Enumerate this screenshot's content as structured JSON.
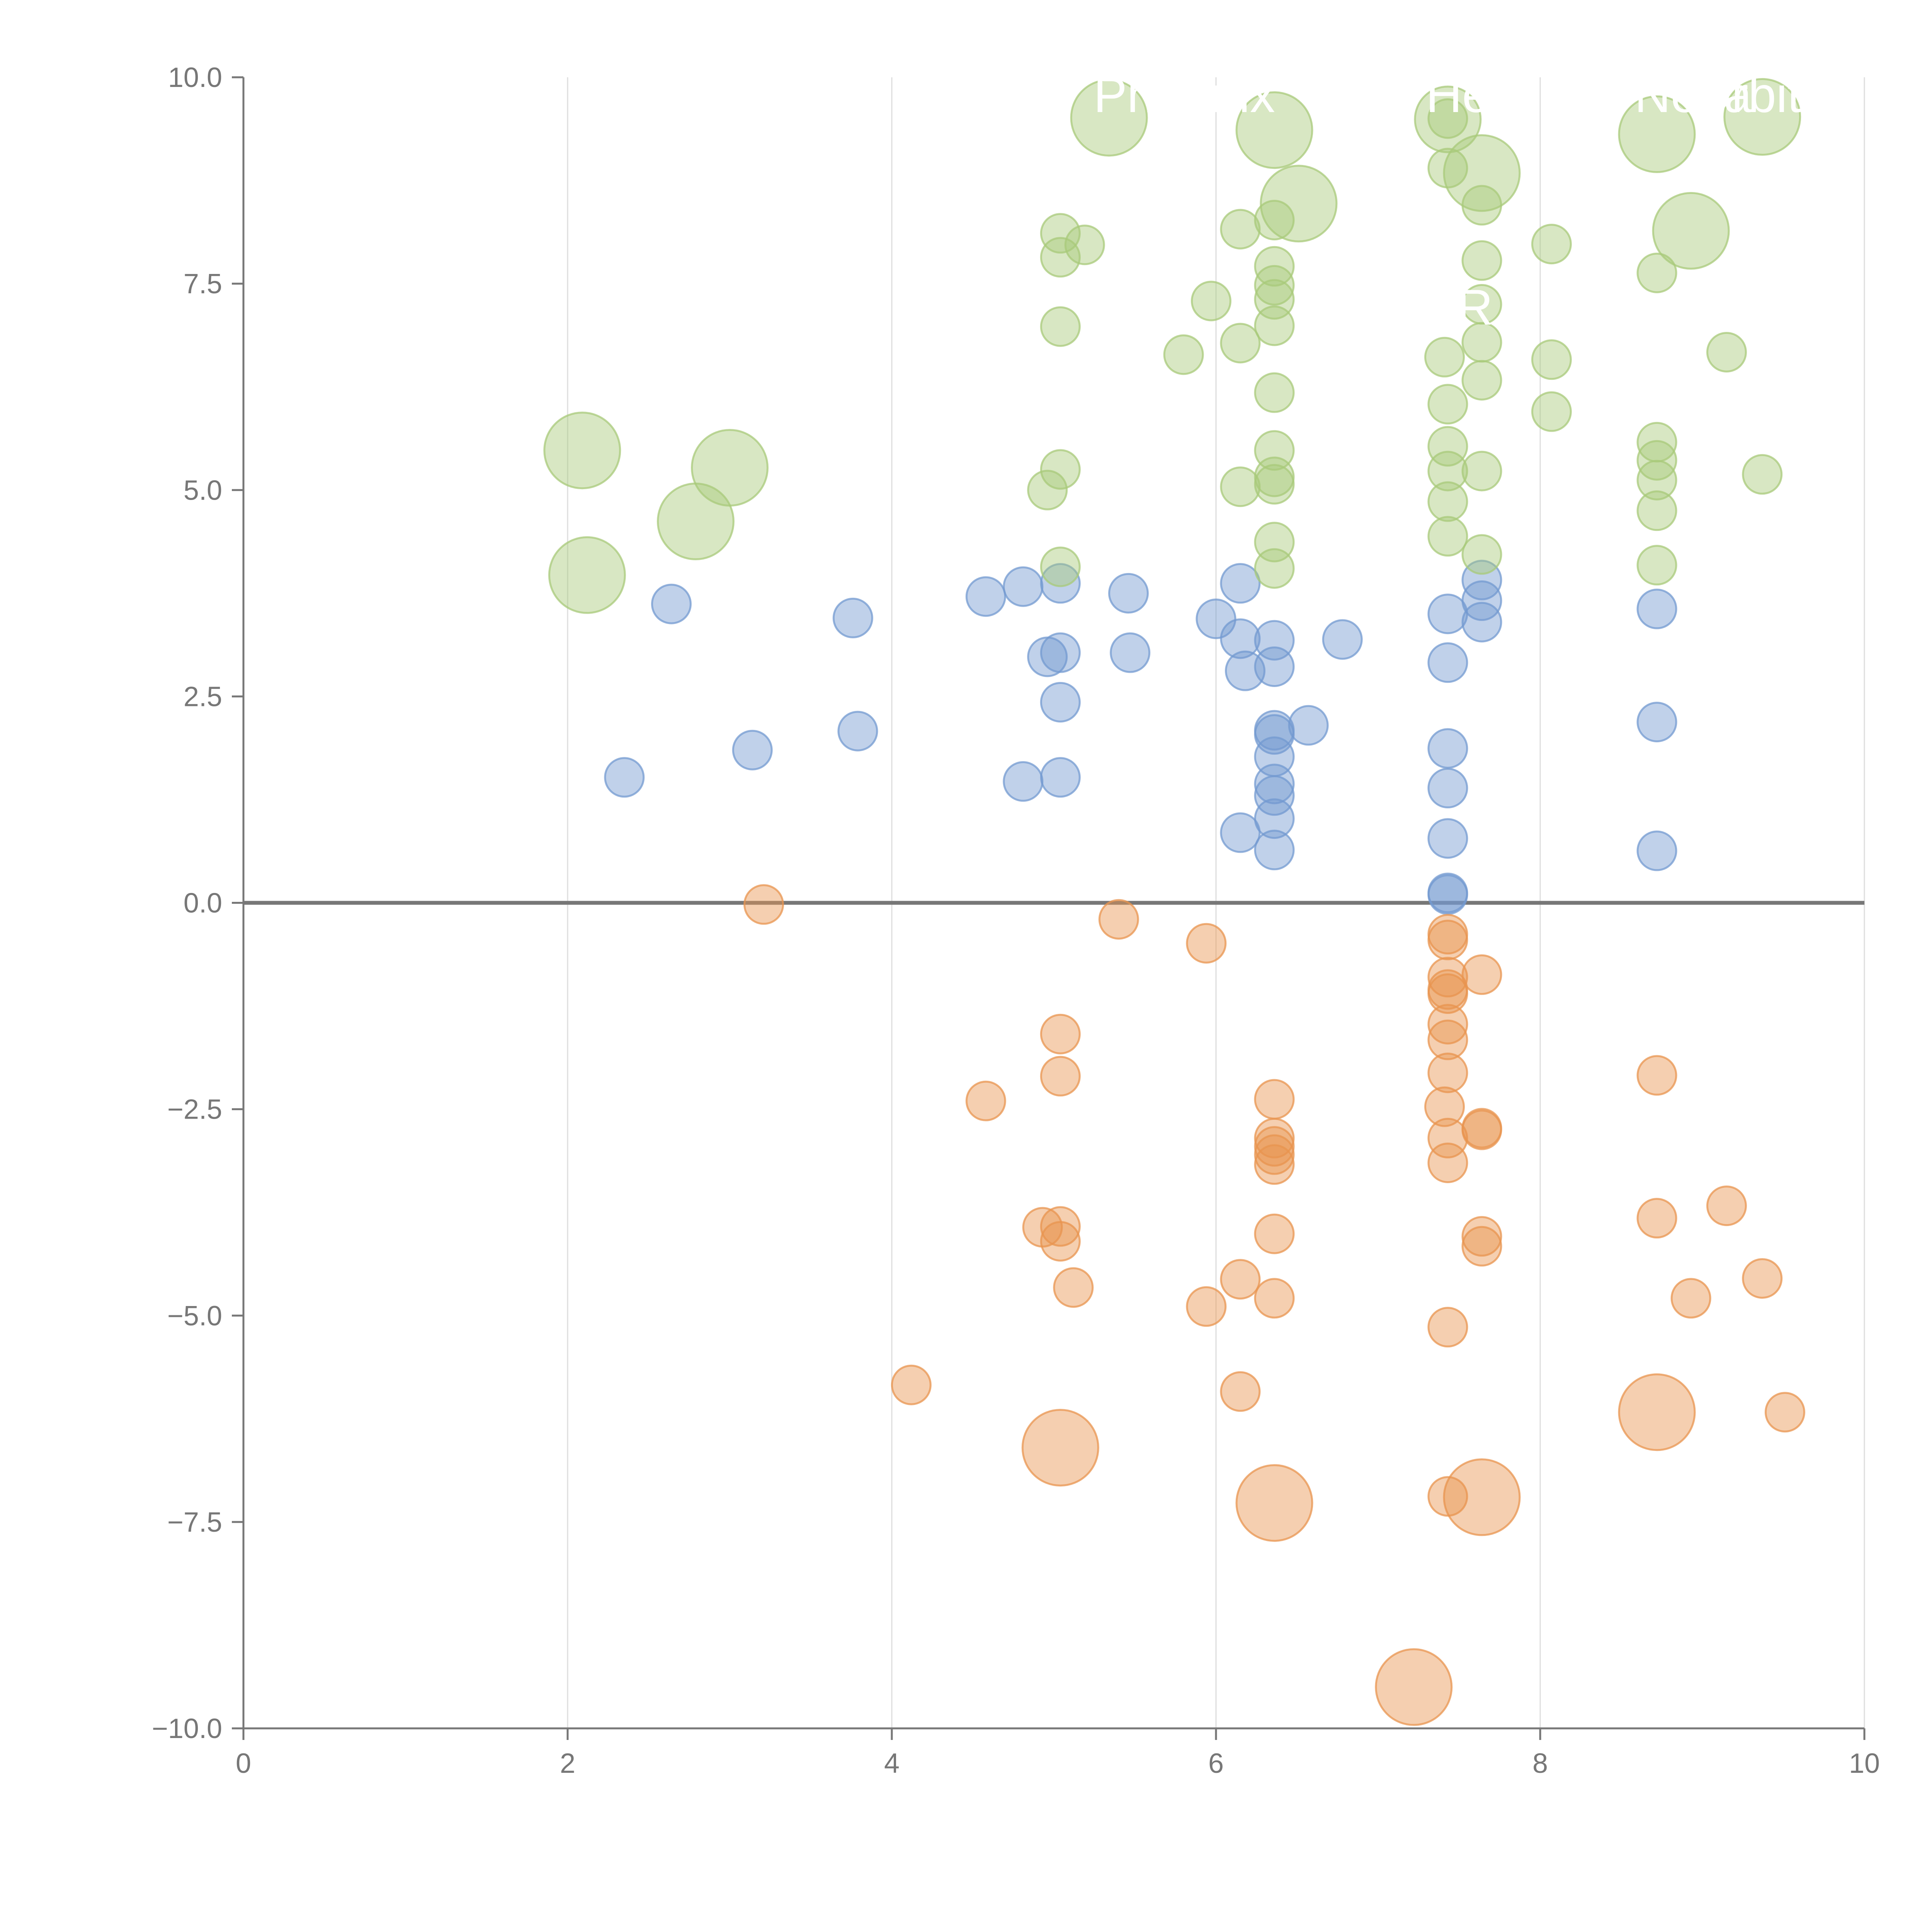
{
  "colors": {
    "blue": "#7399d0",
    "orange": "#e8944f",
    "green": "#a8c97a",
    "axis": "#777777",
    "grid": "#dddddd",
    "zero_line": "#777777",
    "label_text": "#ffffff"
  },
  "chart_data": {
    "type": "scatter",
    "title": "",
    "xlabel": "",
    "ylabel": "",
    "xlim": [
      0,
      10
    ],
    "ylim": [
      -10,
      10
    ],
    "x_ticks": [
      "0",
      "2",
      "4",
      "6",
      "8",
      "10"
    ],
    "x_tick_values": [
      0,
      2,
      4,
      6,
      8,
      10
    ],
    "y_ticks": [
      "10.0",
      "7.5",
      "5.0",
      "2.5",
      "0.0",
      "−2.5",
      "−5.0",
      "−7.5",
      "−10.0"
    ],
    "y_tick_values": [
      10,
      7.5,
      5,
      2.5,
      0,
      -2.5,
      -5,
      -7.5,
      -10
    ],
    "grid": {
      "vertical": true,
      "horizontal": false
    },
    "zero_line": true,
    "point_labels": [
      "Phoenix",
      "Helix",
      "Nova",
      "Orbit",
      "R"
    ],
    "series": [
      {
        "name": "blue",
        "color_key": "blue",
        "points": [
          [
            2.35,
            1.52,
            1
          ],
          [
            2.64,
            3.62,
            1
          ],
          [
            3.14,
            1.85,
            1
          ],
          [
            3.76,
            3.45,
            1
          ],
          [
            3.79,
            2.08,
            1
          ],
          [
            4.58,
            3.71,
            1
          ],
          [
            4.81,
            3.83,
            1
          ],
          [
            4.96,
            2.98,
            1
          ],
          [
            5.04,
            3.87,
            1
          ],
          [
            5.04,
            3.03,
            1
          ],
          [
            5.04,
            2.43,
            1
          ],
          [
            5.04,
            1.52,
            1
          ],
          [
            4.81,
            1.47,
            1
          ],
          [
            5.46,
            3.75,
            1
          ],
          [
            5.47,
            3.03,
            1
          ],
          [
            6.0,
            3.44,
            1
          ],
          [
            6.15,
            3.87,
            1
          ],
          [
            6.15,
            3.2,
            1
          ],
          [
            6.18,
            2.81,
            1
          ],
          [
            6.36,
            3.18,
            1
          ],
          [
            6.36,
            2.86,
            1
          ],
          [
            6.36,
            2.09,
            1
          ],
          [
            6.36,
            2.04,
            1
          ],
          [
            6.36,
            1.77,
            1
          ],
          [
            6.36,
            1.44,
            1
          ],
          [
            6.36,
            1.3,
            1
          ],
          [
            6.36,
            1.02,
            1
          ],
          [
            6.36,
            0.64,
            1
          ],
          [
            6.15,
            0.85,
            1
          ],
          [
            6.57,
            2.15,
            1
          ],
          [
            6.78,
            3.19,
            1
          ],
          [
            7.43,
            3.5,
            1
          ],
          [
            7.43,
            2.91,
            1
          ],
          [
            7.43,
            1.87,
            1
          ],
          [
            7.43,
            1.39,
            1
          ],
          [
            7.43,
            0.78,
            1
          ],
          [
            7.43,
            0.12,
            1
          ],
          [
            7.43,
            0.1,
            1
          ],
          [
            7.64,
            3.91,
            1
          ],
          [
            7.64,
            3.66,
            1
          ],
          [
            7.64,
            3.4,
            1
          ],
          [
            8.72,
            3.56,
            1
          ],
          [
            8.72,
            2.19,
            1
          ],
          [
            8.72,
            0.63,
            1
          ]
        ]
      },
      {
        "name": "orange",
        "color_key": "orange",
        "points": [
          [
            3.21,
            -0.02,
            1
          ],
          [
            4.12,
            -5.84,
            1
          ],
          [
            4.58,
            -2.4,
            1
          ],
          [
            4.93,
            -3.93,
            1
          ],
          [
            5.04,
            -1.59,
            1
          ],
          [
            5.04,
            -2.1,
            1
          ],
          [
            5.04,
            -3.92,
            1
          ],
          [
            5.04,
            -4.1,
            1
          ],
          [
            5.12,
            -4.66,
            1
          ],
          [
            5.04,
            -6.6,
            3
          ],
          [
            5.4,
            -0.2,
            1
          ],
          [
            5.94,
            -0.49,
            1
          ],
          [
            5.94,
            -4.89,
            1
          ],
          [
            6.15,
            -4.56,
            1
          ],
          [
            6.15,
            -5.92,
            1
          ],
          [
            6.36,
            -2.38,
            1
          ],
          [
            6.36,
            -2.85,
            1
          ],
          [
            6.36,
            -2.95,
            1
          ],
          [
            6.36,
            -3.05,
            1
          ],
          [
            6.36,
            -3.17,
            1
          ],
          [
            6.36,
            -4.01,
            1
          ],
          [
            6.36,
            -4.79,
            1
          ],
          [
            6.36,
            -7.27,
            3
          ],
          [
            7.43,
            -0.38,
            1
          ],
          [
            7.43,
            -0.45,
            1
          ],
          [
            7.43,
            -0.9,
            1
          ],
          [
            7.43,
            -1.05,
            1
          ],
          [
            7.43,
            -1.1,
            1
          ],
          [
            7.43,
            -1.47,
            1
          ],
          [
            7.43,
            -1.66,
            1
          ],
          [
            7.43,
            -2.06,
            1
          ],
          [
            7.41,
            -2.47,
            1
          ],
          [
            7.43,
            -2.85,
            1
          ],
          [
            7.43,
            -3.15,
            1
          ],
          [
            7.43,
            -5.14,
            1
          ],
          [
            7.43,
            -7.19,
            1
          ],
          [
            7.22,
            -9.5,
            3
          ],
          [
            7.64,
            -0.87,
            1
          ],
          [
            7.64,
            -2.73,
            1
          ],
          [
            7.64,
            -2.75,
            1
          ],
          [
            7.64,
            -4.04,
            1
          ],
          [
            7.64,
            -4.16,
            1
          ],
          [
            7.64,
            -7.2,
            3
          ],
          [
            8.72,
            -2.09,
            1
          ],
          [
            8.72,
            -3.82,
            1
          ],
          [
            8.72,
            -6.17,
            3
          ],
          [
            8.93,
            -4.79,
            1
          ],
          [
            9.15,
            -3.67,
            1
          ],
          [
            9.37,
            -4.55,
            1
          ],
          [
            9.51,
            -6.17,
            1
          ]
        ]
      },
      {
        "name": "green",
        "color_key": "green",
        "points": [
          [
            2.09,
            5.48,
            3
          ],
          [
            2.12,
            3.97,
            3
          ],
          [
            2.79,
            4.62,
            3
          ],
          [
            3.0,
            5.27,
            3
          ],
          [
            4.96,
            5.0,
            1
          ],
          [
            5.04,
            5.25,
            1
          ],
          [
            5.04,
            4.07,
            1
          ],
          [
            5.04,
            6.98,
            1
          ],
          [
            5.04,
            7.82,
            1
          ],
          [
            5.04,
            8.11,
            1
          ],
          [
            5.19,
            7.97,
            1
          ],
          [
            5.34,
            9.51,
            3
          ],
          [
            5.8,
            6.64,
            1
          ],
          [
            5.97,
            7.29,
            1
          ],
          [
            6.15,
            8.16,
            1
          ],
          [
            6.15,
            6.78,
            1
          ],
          [
            6.15,
            5.04,
            1
          ],
          [
            6.36,
            9.36,
            3
          ],
          [
            6.36,
            8.27,
            1
          ],
          [
            6.36,
            7.71,
            1
          ],
          [
            6.36,
            7.48,
            1
          ],
          [
            6.36,
            7.31,
            1
          ],
          [
            6.36,
            6.99,
            1
          ],
          [
            6.36,
            6.18,
            1
          ],
          [
            6.36,
            5.48,
            1
          ],
          [
            6.36,
            5.16,
            1
          ],
          [
            6.36,
            5.07,
            1
          ],
          [
            6.36,
            4.37,
            1
          ],
          [
            6.36,
            4.05,
            1
          ],
          [
            6.51,
            8.47,
            3
          ],
          [
            7.43,
            9.49,
            2
          ],
          [
            7.43,
            9.5,
            1
          ],
          [
            7.43,
            8.9,
            1
          ],
          [
            7.41,
            6.61,
            1
          ],
          [
            7.43,
            6.04,
            1
          ],
          [
            7.43,
            5.53,
            1
          ],
          [
            7.43,
            5.23,
            1
          ],
          [
            7.43,
            4.86,
            1
          ],
          [
            7.43,
            4.44,
            1
          ],
          [
            7.64,
            8.84,
            3
          ],
          [
            7.64,
            8.45,
            1
          ],
          [
            7.64,
            7.78,
            1
          ],
          [
            7.64,
            7.25,
            1
          ],
          [
            7.64,
            6.79,
            1
          ],
          [
            7.64,
            6.33,
            1
          ],
          [
            7.64,
            5.23,
            1
          ],
          [
            7.64,
            4.22,
            1
          ],
          [
            8.07,
            7.98,
            1
          ],
          [
            8.07,
            6.58,
            1
          ],
          [
            8.07,
            5.95,
            1
          ],
          [
            8.72,
            9.31,
            3
          ],
          [
            8.72,
            7.63,
            1
          ],
          [
            8.72,
            5.58,
            1
          ],
          [
            8.72,
            5.36,
            1
          ],
          [
            8.72,
            5.12,
            1
          ],
          [
            8.72,
            4.75,
            1
          ],
          [
            8.72,
            4.09,
            1
          ],
          [
            8.93,
            8.14,
            3
          ],
          [
            9.15,
            6.67,
            1
          ],
          [
            9.37,
            9.52,
            3
          ],
          [
            9.37,
            5.19,
            1
          ]
        ]
      }
    ]
  }
}
